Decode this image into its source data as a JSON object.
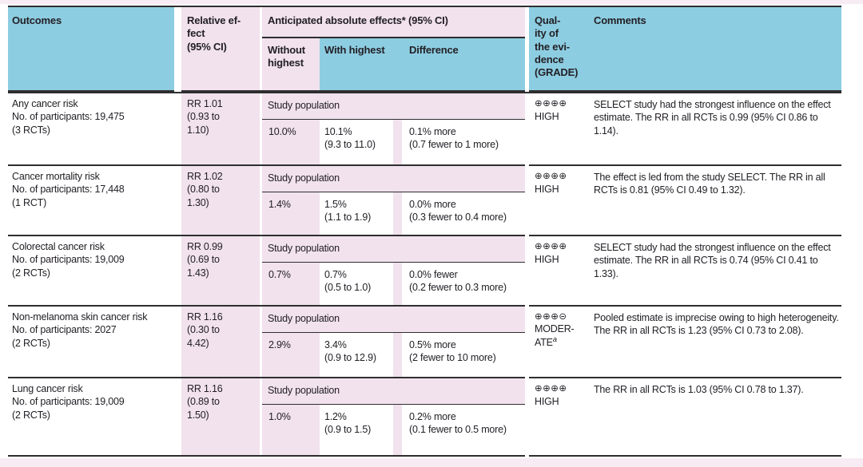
{
  "colors": {
    "header_blue": "#8dcde1",
    "shade_pink": "#f1e2ee",
    "rule": "#2e2e2e",
    "text": "#232026"
  },
  "table": {
    "header": {
      "outcomes": "Outcomes",
      "relative_effect": "Relative ef-\nfect\n(95% CI)",
      "absolute_effects": "Anticipated absolute effects* (95% CI)",
      "without_highest": "Without\nhighest",
      "with_highest": "With highest",
      "difference": "Difference",
      "quality": "Qual-\nity of\nthe evi-\ndence\n(GRADE)",
      "comments": "Comments"
    },
    "rows": [
      {
        "outcome": "Any cancer risk\nNo. of participants: 19,475\n(3 RCTs)",
        "relative_effect": "RR 1.01\n(0.93 to\n1.10)",
        "population_label": "Study population",
        "without_highest": "10.0%",
        "with_highest": "10.1%\n(9.3 to 11.0)",
        "difference": "0.1% more\n(0.7 fewer to 1 more)",
        "grade_symbols": "⊕⊕⊕⊕",
        "grade_label": "HIGH",
        "grade_note": "",
        "comments": "SELECT study had the strongest influence on the effect estimate. The RR in all RCTs is 0.99 (95% CI 0.86 to 1.14)."
      },
      {
        "outcome": "Cancer mortality risk\nNo. of participants: 17,448\n(1 RCT)",
        "relative_effect": "RR 1.02\n(0.80 to\n1.30)",
        "population_label": "Study population",
        "without_highest": "1.4%",
        "with_highest": "1.5%\n(1.1 to 1.9)",
        "difference": "0.0% more\n(0.3 fewer to 0.4 more)",
        "grade_symbols": "⊕⊕⊕⊕",
        "grade_label": "HIGH",
        "grade_note": "",
        "comments": "The effect is led from the study SELECT. The RR in all RCTs is 0.81 (95% CI 0.49 to 1.32)."
      },
      {
        "outcome": "Colorectal cancer risk\nNo. of participants: 19,009\n(2 RCTs)",
        "relative_effect": "RR 0.99\n(0.69 to\n1.43)",
        "population_label": "Study population",
        "without_highest": "0.7%",
        "with_highest": "0.7%\n(0.5 to 1.0)",
        "difference": "0.0% fewer\n(0.2 fewer to 0.3 more)",
        "grade_symbols": "⊕⊕⊕⊕",
        "grade_label": "HIGH",
        "grade_note": "",
        "comments": "SELECT study had the strongest influence on the effect estimate. The RR in all RCTs is 0.74 (95% CI 0.41 to 1.33)."
      },
      {
        "outcome": "Non-melanoma skin cancer risk\nNo. of participants: 2027\n(2 RCTs)",
        "relative_effect": "RR 1.16\n(0.30 to\n4.42)",
        "population_label": "Study population",
        "without_highest": "2.9%",
        "with_highest": "3.4%\n(0.9 to 12.9)",
        "difference": "0.5% more\n(2 fewer to 10 more)",
        "grade_symbols": "⊕⊕⊕⊝",
        "grade_label": "MODER-ATE",
        "grade_note": "a",
        "comments": "Pooled estimate is imprecise owing to high heterogeneity. The RR in all RCTs is 1.23 (95% CI 0.73 to 2.08)."
      },
      {
        "outcome": "Lung cancer risk\nNo. of participants: 19,009\n(2 RCTs)",
        "relative_effect": "RR 1.16\n(0.89 to\n1.50)",
        "population_label": "Study population",
        "without_highest": "1.0%",
        "with_highest": "1.2%\n(0.9 to 1.5)",
        "difference": "0.2% more\n(0.1 fewer to 0.5 more)",
        "grade_symbols": "⊕⊕⊕⊕",
        "grade_label": "HIGH",
        "grade_note": "",
        "comments": "The RR in all RCTs is 1.03 (95% CI 0.78 to 1.37)."
      }
    ]
  }
}
